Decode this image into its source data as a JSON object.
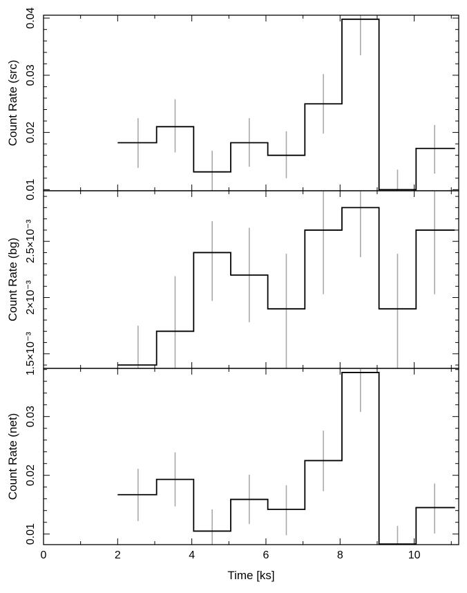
{
  "chart_data": [
    {
      "type": "line",
      "panel": "top",
      "ylabel": "Count Rate (src)",
      "xlim": [
        0,
        11.2
      ],
      "ylim": [
        0.0098,
        0.0405
      ],
      "yticks": [
        0.01,
        0.02,
        0.03,
        0.04
      ],
      "ytick_labels": [
        "0.01",
        "0.02",
        "0.03",
        "0.04"
      ],
      "bins": {
        "x_left": [
          2,
          3.05,
          4.05,
          5.05,
          6.05,
          7.05,
          8.05,
          9.05,
          10.05
        ],
        "x_right": [
          3.05,
          4.05,
          5.05,
          6.05,
          7.05,
          8.05,
          9.05,
          10.05,
          11.1
        ],
        "centers": [
          2.55,
          3.55,
          4.55,
          5.55,
          6.55,
          7.55,
          8.55,
          9.55,
          10.55
        ],
        "values": [
          0.0182,
          0.021,
          0.0131,
          0.0182,
          0.016,
          0.025,
          0.0398,
          0.01,
          0.0172
        ],
        "err_low": [
          0.0138,
          0.0165,
          0.0093,
          0.014,
          0.012,
          0.0198,
          0.0335,
          0.0098,
          0.0128
        ],
        "err_high": [
          0.0225,
          0.0258,
          0.0168,
          0.0225,
          0.0202,
          0.0302,
          0.0405,
          0.0135,
          0.0213
        ]
      }
    },
    {
      "type": "line",
      "panel": "middle",
      "ylabel": "Count Rate (bg)",
      "xlim": [
        0,
        11.2
      ],
      "ylim": [
        0.00137,
        0.00295
      ],
      "yticks": [
        0.0015,
        0.002,
        0.0025
      ],
      "ytick_labels": [
        "1.5×10⁻³",
        "2×10⁻³",
        "2.5×10⁻³"
      ],
      "bins": {
        "x_left": [
          2,
          3.05,
          4.05,
          5.05,
          6.05,
          7.05,
          8.05,
          9.05,
          10.05
        ],
        "x_right": [
          3.05,
          4.05,
          5.05,
          6.05,
          7.05,
          8.05,
          9.05,
          10.05,
          11.1
        ],
        "centers": [
          2.55,
          3.55,
          4.55,
          5.55,
          6.55,
          7.55,
          8.55,
          9.55,
          10.55
        ],
        "values": [
          0.0014,
          0.0017,
          0.0024,
          0.0022,
          0.0019,
          0.0026,
          0.0028,
          0.0019,
          0.0026
        ],
        "err_low": [
          0.00137,
          0.00137,
          0.00197,
          0.00178,
          0.00137,
          0.00203,
          0.00236,
          0.00137,
          0.00203
        ],
        "err_high": [
          0.00175,
          0.00219,
          0.00268,
          0.00262,
          0.00239,
          0.00295,
          0.00295,
          0.00239,
          0.00295
        ]
      }
    },
    {
      "type": "line",
      "panel": "bottom",
      "ylabel": "Count Rate (net)",
      "xlabel": "Time [ks]",
      "xlim": [
        0,
        11.2
      ],
      "xticks": [
        0,
        2,
        4,
        6,
        8,
        10
      ],
      "xtick_labels": [
        "0",
        "2",
        "4",
        "6",
        "8",
        "10"
      ],
      "ylim": [
        0.0082,
        0.0382
      ],
      "yticks": [
        0.01,
        0.02,
        0.03
      ],
      "ytick_labels": [
        "0.01",
        "0.02",
        "0.03"
      ],
      "bins": {
        "x_left": [
          2,
          3.05,
          4.05,
          5.05,
          6.05,
          7.05,
          8.05,
          9.05,
          10.05
        ],
        "x_right": [
          3.05,
          4.05,
          5.05,
          6.05,
          7.05,
          8.05,
          9.05,
          10.05,
          11.1
        ],
        "centers": [
          2.55,
          3.55,
          4.55,
          5.55,
          6.55,
          7.55,
          8.55,
          9.55,
          10.55
        ],
        "values": [
          0.0167,
          0.0193,
          0.0105,
          0.0159,
          0.0142,
          0.0225,
          0.0375,
          0.0083,
          0.0145
        ],
        "err_low": [
          0.0122,
          0.0147,
          0.0082,
          0.0117,
          0.0098,
          0.0173,
          0.0308,
          0.0082,
          0.0101
        ],
        "err_high": [
          0.0211,
          0.0239,
          0.0142,
          0.0201,
          0.0183,
          0.0276,
          0.0382,
          0.0114,
          0.0186
        ]
      }
    }
  ]
}
